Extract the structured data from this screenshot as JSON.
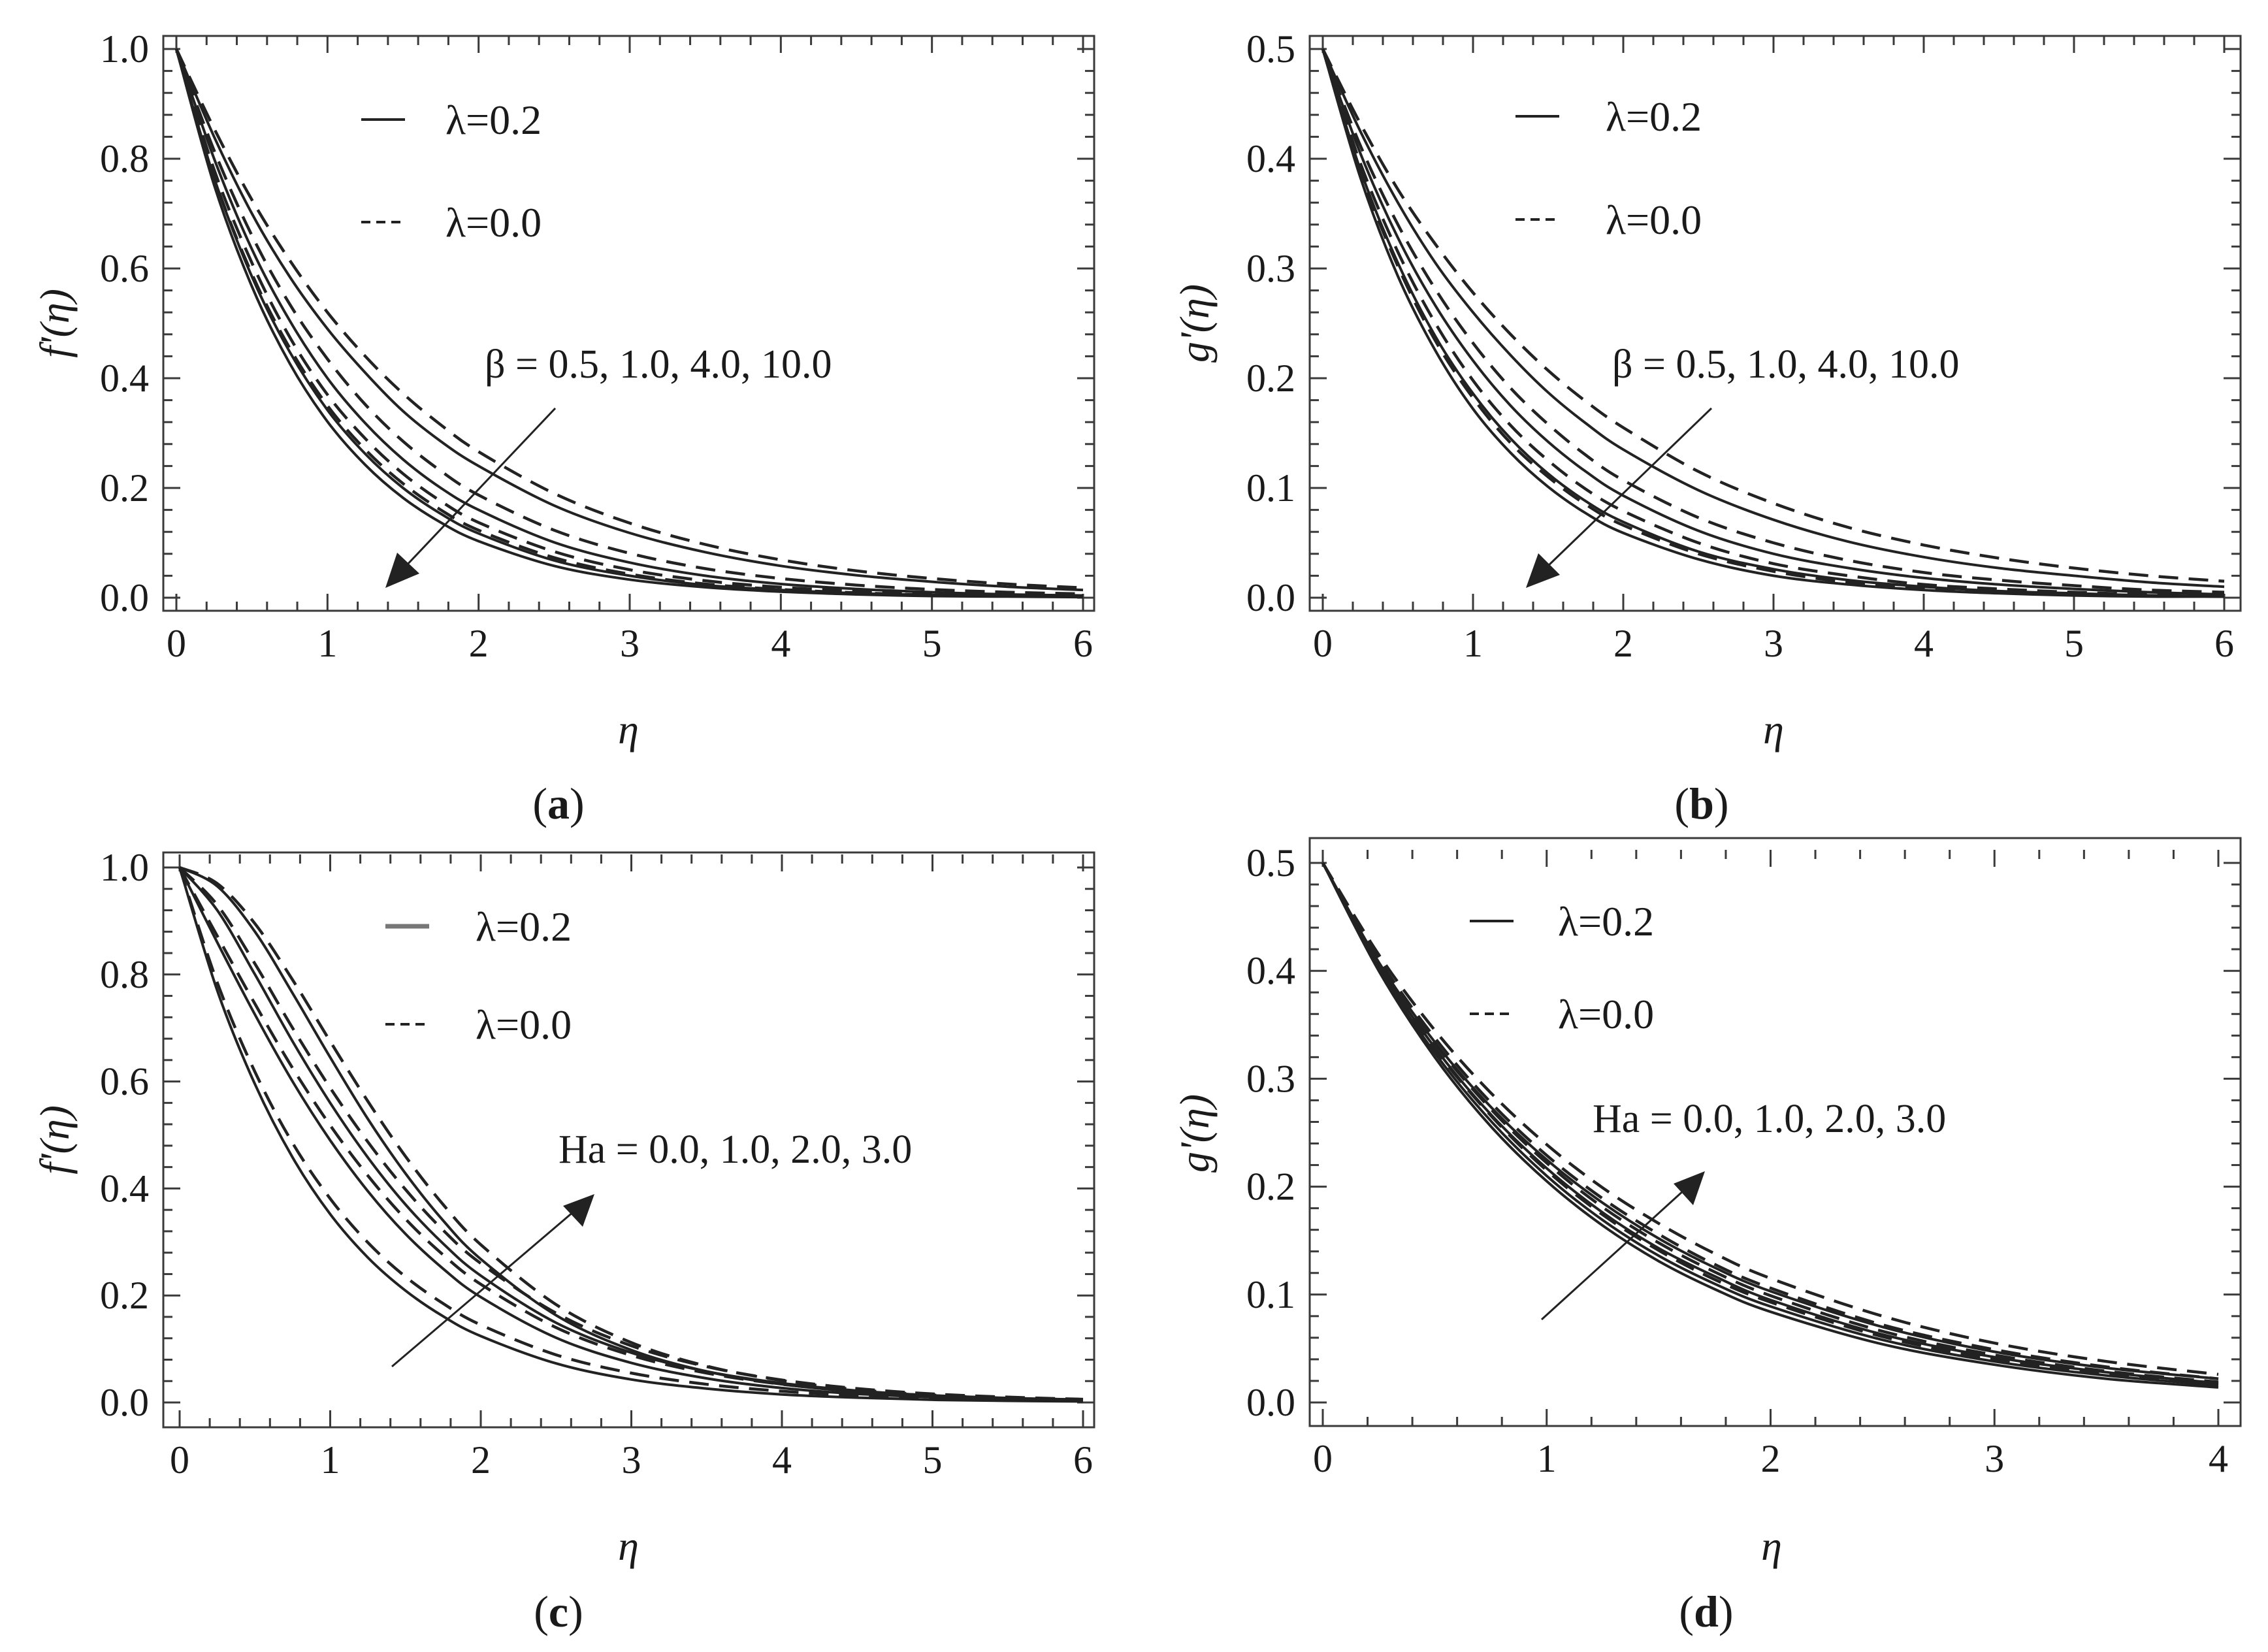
{
  "figure": {
    "panels": [
      {
        "id": "a",
        "caption_letter": "a"
      },
      {
        "id": "b",
        "caption_letter": "b"
      },
      {
        "id": "c",
        "caption_letter": "c"
      },
      {
        "id": "d",
        "caption_letter": "d"
      }
    ]
  },
  "chart_data": [
    {
      "panel": "a",
      "type": "line",
      "xlabel": "η",
      "ylabel": "f'(η)",
      "xlim": [
        0,
        6
      ],
      "ylim": [
        0,
        1.0
      ],
      "xticks": [
        "0",
        "1",
        "2",
        "3",
        "4",
        "5",
        "6"
      ],
      "yticks": [
        "0.0",
        "0.2",
        "0.4",
        "0.6",
        "0.8",
        "1.0"
      ],
      "legend": [
        {
          "label": "λ=0.2",
          "style": "solid"
        },
        {
          "label": "λ=0.0",
          "style": "dashed"
        }
      ],
      "annotation": "β = 0.5, 1.0, 4.0, 10.0",
      "arrow_direction": "down-left",
      "x": [
        0,
        0.25,
        0.5,
        0.75,
        1,
        1.25,
        1.5,
        1.75,
        2,
        2.5,
        3,
        3.5,
        4,
        4.5,
        5,
        5.5,
        6
      ],
      "series": [
        {
          "name": "β=0.5, λ=0.2",
          "style": "solid",
          "values": [
            1.0,
            0.84,
            0.7,
            0.585,
            0.49,
            0.41,
            0.34,
            0.285,
            0.24,
            0.168,
            0.118,
            0.083,
            0.058,
            0.041,
            0.029,
            0.02,
            0.014
          ]
        },
        {
          "name": "β=0.5, λ=0.0",
          "style": "dashed",
          "values": [
            1.0,
            0.855,
            0.725,
            0.615,
            0.52,
            0.44,
            0.372,
            0.315,
            0.266,
            0.19,
            0.136,
            0.097,
            0.069,
            0.049,
            0.035,
            0.025,
            0.018
          ]
        },
        {
          "name": "β=1.0, λ=0.2",
          "style": "solid",
          "values": [
            1.0,
            0.8,
            0.635,
            0.505,
            0.4,
            0.318,
            0.252,
            0.2,
            0.16,
            0.101,
            0.064,
            0.04,
            0.025,
            0.016,
            0.01,
            0.006,
            0.004
          ]
        },
        {
          "name": "β=1.0, λ=0.0",
          "style": "dashed",
          "values": [
            1.0,
            0.815,
            0.66,
            0.535,
            0.435,
            0.352,
            0.285,
            0.231,
            0.187,
            0.123,
            0.081,
            0.053,
            0.035,
            0.023,
            0.015,
            0.01,
            0.007
          ]
        },
        {
          "name": "β=4.0, λ=0.2",
          "style": "solid",
          "values": [
            1.0,
            0.765,
            0.585,
            0.448,
            0.342,
            0.262,
            0.2,
            0.153,
            0.117,
            0.068,
            0.04,
            0.023,
            0.014,
            0.008,
            0.005,
            0.003,
            0.002
          ]
        },
        {
          "name": "β=4.0, λ=0.0",
          "style": "dashed",
          "values": [
            1.0,
            0.78,
            0.61,
            0.475,
            0.37,
            0.29,
            0.226,
            0.176,
            0.137,
            0.084,
            0.051,
            0.031,
            0.019,
            0.012,
            0.007,
            0.004,
            0.003
          ]
        },
        {
          "name": "β=10.0, λ=0.2",
          "style": "solid",
          "values": [
            1.0,
            0.752,
            0.567,
            0.427,
            0.321,
            0.242,
            0.182,
            0.137,
            0.103,
            0.058,
            0.033,
            0.019,
            0.011,
            0.006,
            0.003,
            0.002,
            0.001
          ]
        },
        {
          "name": "β=10.0, λ=0.0",
          "style": "dashed",
          "values": [
            1.0,
            0.766,
            0.59,
            0.455,
            0.35,
            0.27,
            0.208,
            0.16,
            0.123,
            0.073,
            0.043,
            0.025,
            0.015,
            0.009,
            0.005,
            0.003,
            0.002
          ]
        }
      ]
    },
    {
      "panel": "b",
      "type": "line",
      "xlabel": "η",
      "ylabel": "g'(η)",
      "xlim": [
        0,
        6
      ],
      "ylim": [
        0,
        0.5
      ],
      "xticks": [
        "0",
        "1",
        "2",
        "3",
        "4",
        "5",
        "6"
      ],
      "yticks": [
        "0.0",
        "0.1",
        "0.2",
        "0.3",
        "0.4",
        "0.5"
      ],
      "legend": [
        {
          "label": "λ=0.2",
          "style": "solid"
        },
        {
          "label": "λ=0.0",
          "style": "dashed"
        }
      ],
      "annotation": "β = 0.5, 1.0, 4.0, 10.0",
      "arrow_direction": "down-left",
      "x": [
        0,
        0.25,
        0.5,
        0.75,
        1,
        1.25,
        1.5,
        1.75,
        2,
        2.5,
        3,
        3.5,
        4,
        4.5,
        5,
        5.5,
        6
      ],
      "series": [
        {
          "name": "β=0.5, λ=0.2",
          "style": "solid",
          "values": [
            0.5,
            0.425,
            0.36,
            0.305,
            0.26,
            0.221,
            0.187,
            0.159,
            0.135,
            0.098,
            0.071,
            0.051,
            0.037,
            0.027,
            0.02,
            0.014,
            0.01
          ]
        },
        {
          "name": "β=0.5, λ=0.0",
          "style": "dashed",
          "values": [
            0.5,
            0.432,
            0.372,
            0.322,
            0.278,
            0.24,
            0.207,
            0.179,
            0.155,
            0.115,
            0.086,
            0.064,
            0.048,
            0.036,
            0.027,
            0.02,
            0.015
          ]
        },
        {
          "name": "β=1.0, λ=0.2",
          "style": "solid",
          "values": [
            0.5,
            0.405,
            0.328,
            0.266,
            0.216,
            0.175,
            0.142,
            0.115,
            0.093,
            0.061,
            0.04,
            0.027,
            0.018,
            0.012,
            0.008,
            0.005,
            0.003
          ]
        },
        {
          "name": "β=1.0, λ=0.0",
          "style": "dashed",
          "values": [
            0.5,
            0.412,
            0.34,
            0.281,
            0.232,
            0.191,
            0.158,
            0.13,
            0.107,
            0.073,
            0.05,
            0.034,
            0.023,
            0.016,
            0.011,
            0.007,
            0.005
          ]
        },
        {
          "name": "β=4.0, λ=0.2",
          "style": "solid",
          "values": [
            0.5,
            0.39,
            0.305,
            0.238,
            0.186,
            0.145,
            0.113,
            0.088,
            0.069,
            0.042,
            0.026,
            0.016,
            0.01,
            0.006,
            0.004,
            0.002,
            0.001
          ]
        },
        {
          "name": "β=4.0, λ=0.0",
          "style": "dashed",
          "values": [
            0.5,
            0.396,
            0.315,
            0.25,
            0.198,
            0.157,
            0.125,
            0.099,
            0.079,
            0.05,
            0.031,
            0.02,
            0.012,
            0.008,
            0.005,
            0.003,
            0.002
          ]
        },
        {
          "name": "β=10.0, λ=0.2",
          "style": "solid",
          "values": [
            0.5,
            0.383,
            0.293,
            0.225,
            0.172,
            0.132,
            0.101,
            0.077,
            0.059,
            0.035,
            0.02,
            0.012,
            0.007,
            0.004,
            0.002,
            0.001,
            0.001
          ]
        },
        {
          "name": "β=10.0, λ=0.0",
          "style": "dashed",
          "values": [
            0.5,
            0.388,
            0.302,
            0.234,
            0.182,
            0.141,
            0.11,
            0.085,
            0.066,
            0.04,
            0.024,
            0.014,
            0.009,
            0.005,
            0.003,
            0.002,
            0.001
          ]
        }
      ]
    },
    {
      "panel": "c",
      "type": "line",
      "xlabel": "η",
      "ylabel": "f'(η)",
      "xlim": [
        0,
        6
      ],
      "ylim": [
        0,
        1.0
      ],
      "xticks": [
        "0",
        "1",
        "2",
        "3",
        "4",
        "5",
        "6"
      ],
      "yticks": [
        "0.0",
        "0.2",
        "0.4",
        "0.6",
        "0.8",
        "1.0"
      ],
      "legend": [
        {
          "label": "λ=0.2",
          "style": "solid"
        },
        {
          "label": "λ=0.0",
          "style": "dashed"
        }
      ],
      "annotation": "Ha = 0.0, 1.0, 2.0, 3.0",
      "arrow_direction": "up-right",
      "x": [
        0,
        0.25,
        0.5,
        0.75,
        1,
        1.25,
        1.5,
        1.75,
        2,
        2.5,
        3,
        3.5,
        4,
        4.5,
        5,
        5.5,
        6
      ],
      "series": [
        {
          "name": "Ha=0.0, λ=0.2",
          "style": "solid",
          "values": [
            1.0,
            0.77,
            0.595,
            0.458,
            0.352,
            0.271,
            0.209,
            0.161,
            0.124,
            0.073,
            0.043,
            0.026,
            0.015,
            0.009,
            0.005,
            0.003,
            0.002
          ]
        },
        {
          "name": "Ha=0.0, λ=0.0",
          "style": "dashed",
          "values": [
            1.0,
            0.785,
            0.618,
            0.485,
            0.381,
            0.299,
            0.235,
            0.185,
            0.145,
            0.089,
            0.055,
            0.034,
            0.021,
            0.013,
            0.008,
            0.005,
            0.003
          ]
        },
        {
          "name": "Ha=1.0, λ=0.2",
          "style": "solid",
          "values": [
            1.0,
            0.86,
            0.725,
            0.6,
            0.49,
            0.395,
            0.315,
            0.25,
            0.197,
            0.121,
            0.074,
            0.045,
            0.027,
            0.016,
            0.01,
            0.006,
            0.004
          ]
        },
        {
          "name": "Ha=1.0, λ=0.0",
          "style": "dashed",
          "values": [
            1.0,
            0.872,
            0.745,
            0.625,
            0.518,
            0.424,
            0.343,
            0.276,
            0.221,
            0.14,
            0.088,
            0.055,
            0.034,
            0.021,
            0.013,
            0.008,
            0.005
          ]
        },
        {
          "name": "Ha=2.0, λ=0.2",
          "style": "solid",
          "values": [
            1.0,
            0.92,
            0.8,
            0.675,
            0.56,
            0.458,
            0.37,
            0.297,
            0.237,
            0.149,
            0.093,
            0.058,
            0.036,
            0.022,
            0.013,
            0.008,
            0.005
          ]
        },
        {
          "name": "Ha=2.0, λ=0.0",
          "style": "dashed",
          "values": [
            1.0,
            0.93,
            0.82,
            0.7,
            0.588,
            0.487,
            0.398,
            0.322,
            0.26,
            0.167,
            0.106,
            0.067,
            0.042,
            0.026,
            0.016,
            0.01,
            0.006
          ]
        },
        {
          "name": "Ha=3.0, λ=0.2",
          "style": "solid",
          "values": [
            1.0,
            0.965,
            0.88,
            0.765,
            0.645,
            0.53,
            0.428,
            0.34,
            0.268,
            0.163,
            0.098,
            0.058,
            0.034,
            0.02,
            0.012,
            0.007,
            0.004
          ]
        },
        {
          "name": "Ha=3.0, λ=0.0",
          "style": "dashed",
          "values": [
            1.0,
            0.97,
            0.895,
            0.79,
            0.675,
            0.563,
            0.46,
            0.37,
            0.295,
            0.183,
            0.112,
            0.068,
            0.041,
            0.024,
            0.014,
            0.008,
            0.005
          ]
        }
      ]
    },
    {
      "panel": "d",
      "type": "line",
      "xlabel": "η",
      "ylabel": "g'(η)",
      "xlim": [
        0,
        4
      ],
      "ylim": [
        0,
        0.5
      ],
      "xticks": [
        "0",
        "1",
        "2",
        "3",
        "4"
      ],
      "yticks": [
        "0.0",
        "0.1",
        "0.2",
        "0.3",
        "0.4",
        "0.5"
      ],
      "legend": [
        {
          "label": "λ=0.2",
          "style": "solid"
        },
        {
          "label": "λ=0.0",
          "style": "dashed"
        }
      ],
      "annotation": "Ha = 0.0, 1.0, 2.0, 3.0",
      "arrow_direction": "up-right",
      "x": [
        0,
        0.25,
        0.5,
        0.75,
        1,
        1.25,
        1.5,
        1.75,
        2,
        2.5,
        3,
        3.5,
        4
      ],
      "series": [
        {
          "name": "Ha=0.0, λ=0.2",
          "style": "solid",
          "values": [
            0.5,
            0.4,
            0.32,
            0.256,
            0.205,
            0.164,
            0.131,
            0.105,
            0.084,
            0.054,
            0.035,
            0.022,
            0.014
          ]
        },
        {
          "name": "Ha=0.0, λ=0.0",
          "style": "dashed",
          "values": [
            0.5,
            0.405,
            0.328,
            0.266,
            0.215,
            0.174,
            0.141,
            0.114,
            0.093,
            0.061,
            0.04,
            0.026,
            0.017
          ]
        },
        {
          "name": "Ha=1.0, λ=0.2",
          "style": "solid",
          "values": [
            0.5,
            0.402,
            0.324,
            0.261,
            0.21,
            0.169,
            0.136,
            0.11,
            0.089,
            0.058,
            0.038,
            0.025,
            0.016
          ]
        },
        {
          "name": "Ha=1.0, λ=0.0",
          "style": "dashed",
          "values": [
            0.5,
            0.408,
            0.333,
            0.272,
            0.222,
            0.181,
            0.148,
            0.121,
            0.099,
            0.066,
            0.044,
            0.029,
            0.019
          ]
        },
        {
          "name": "Ha=2.0, λ=0.2",
          "style": "solid",
          "values": [
            0.5,
            0.405,
            0.329,
            0.267,
            0.217,
            0.176,
            0.143,
            0.117,
            0.095,
            0.063,
            0.042,
            0.028,
            0.018
          ]
        },
        {
          "name": "Ha=2.0, λ=0.0",
          "style": "dashed",
          "values": [
            0.5,
            0.411,
            0.338,
            0.278,
            0.229,
            0.189,
            0.156,
            0.128,
            0.106,
            0.072,
            0.049,
            0.033,
            0.022
          ]
        },
        {
          "name": "Ha=3.0, λ=0.2",
          "style": "solid",
          "values": [
            0.5,
            0.408,
            0.334,
            0.274,
            0.225,
            0.185,
            0.152,
            0.125,
            0.103,
            0.07,
            0.047,
            0.032,
            0.022
          ]
        },
        {
          "name": "Ha=3.0, λ=0.0",
          "style": "dashed",
          "values": [
            0.5,
            0.415,
            0.345,
            0.287,
            0.239,
            0.199,
            0.166,
            0.138,
            0.115,
            0.08,
            0.055,
            0.038,
            0.026
          ]
        }
      ]
    }
  ]
}
